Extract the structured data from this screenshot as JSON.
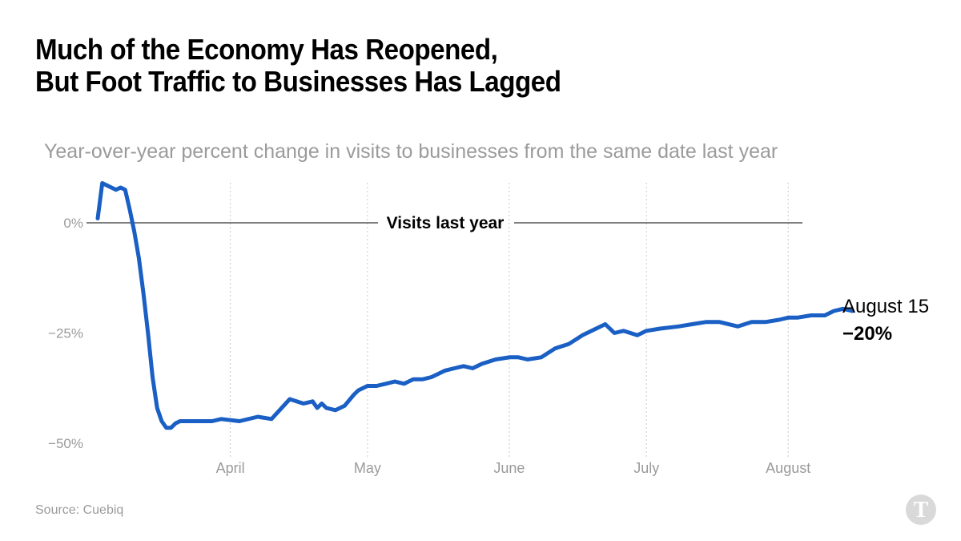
{
  "title_line1": "Much of the Economy Has Reopened,",
  "title_line2": "But Foot Traffic to Businesses Has Lagged",
  "source": "Source: Cuebiq",
  "logo_icon": "nyt-logo-icon",
  "chart_data": {
    "type": "line",
    "title": "Much of the Economy Has Reopened, But Foot Traffic to Businesses Has Lagged",
    "subtitle": "Year-over-year percent change in visits to businesses from the same date last year",
    "color": "#1a5fc4",
    "reference_line": {
      "y": 0,
      "label": "Visits last year"
    },
    "ylim": [
      -50,
      10
    ],
    "xlim": [
      "2020-03-01",
      "2020-08-20"
    ],
    "y_ticks": [
      {
        "value": 0,
        "label": "0%"
      },
      {
        "value": -25,
        "label": "−25%"
      },
      {
        "value": -50,
        "label": "−50%"
      }
    ],
    "x_ticks": [
      {
        "value": "2020-04-01",
        "label": "April"
      },
      {
        "value": "2020-05-01",
        "label": "May"
      },
      {
        "value": "2020-06-01",
        "label": "June"
      },
      {
        "value": "2020-07-01",
        "label": "July"
      },
      {
        "value": "2020-08-01",
        "label": "August"
      }
    ],
    "end_annotation": {
      "date": "August 15",
      "value": "−20%"
    },
    "series": [
      {
        "x": [
          "2020-03-03",
          "2020-03-04",
          "2020-03-05",
          "2020-03-06",
          "2020-03-07",
          "2020-03-08",
          "2020-03-09",
          "2020-03-10",
          "2020-03-11",
          "2020-03-12",
          "2020-03-13",
          "2020-03-14",
          "2020-03-15",
          "2020-03-16",
          "2020-03-17",
          "2020-03-18",
          "2020-03-19",
          "2020-03-20",
          "2020-03-21",
          "2020-03-22",
          "2020-03-23",
          "2020-03-24",
          "2020-03-25",
          "2020-03-26",
          "2020-03-27",
          "2020-03-28",
          "2020-03-30",
          "2020-04-03",
          "2020-04-07",
          "2020-04-10",
          "2020-04-14",
          "2020-04-17",
          "2020-04-19",
          "2020-04-20",
          "2020-04-21",
          "2020-04-22",
          "2020-04-24",
          "2020-04-26",
          "2020-04-28",
          "2020-04-29",
          "2020-04-30",
          "2020-05-01",
          "2020-05-03",
          "2020-05-05",
          "2020-05-07",
          "2020-05-09",
          "2020-05-11",
          "2020-05-13",
          "2020-05-15",
          "2020-05-18",
          "2020-05-20",
          "2020-05-22",
          "2020-05-24",
          "2020-05-26",
          "2020-05-29",
          "2020-06-01",
          "2020-06-03",
          "2020-06-05",
          "2020-06-08",
          "2020-06-11",
          "2020-06-14",
          "2020-06-17",
          "2020-06-19",
          "2020-06-22",
          "2020-06-24",
          "2020-06-26",
          "2020-06-29",
          "2020-07-01",
          "2020-07-04",
          "2020-07-08",
          "2020-07-11",
          "2020-07-14",
          "2020-07-17",
          "2020-07-21",
          "2020-07-24",
          "2020-07-27",
          "2020-07-30",
          "2020-08-01",
          "2020-08-03",
          "2020-08-06",
          "2020-08-09",
          "2020-08-11",
          "2020-08-13",
          "2020-08-15"
        ],
        "y": [
          1,
          9,
          8.5,
          8,
          7.5,
          8,
          7.5,
          3,
          -2,
          -8,
          -16,
          -25,
          -35,
          -42,
          -45,
          -46.5,
          -46.5,
          -45.5,
          -45,
          -45,
          -45,
          -45,
          -45,
          -45,
          -45,
          -45,
          -44.5,
          -45,
          -44,
          -44.5,
          -40,
          -41,
          -40.5,
          -42,
          -41,
          -42,
          -42.5,
          -41.5,
          -39,
          -38,
          -37.5,
          -37,
          -37,
          -36.5,
          -36,
          -36.5,
          -35.5,
          -35.5,
          -35,
          -33.5,
          -33,
          -32.5,
          -33,
          -32,
          -31,
          -30.5,
          -30.5,
          -31,
          -30.5,
          -28.5,
          -27.5,
          -25.5,
          -24.5,
          -23,
          -25,
          -24.5,
          -25.5,
          -24.5,
          -24,
          -23.5,
          -23,
          -22.5,
          -22.5,
          -23.5,
          -22.5,
          -22.5,
          -22,
          -21.5,
          -21.5,
          -21,
          -21,
          -20,
          -19.5,
          -20
        ]
      }
    ]
  }
}
